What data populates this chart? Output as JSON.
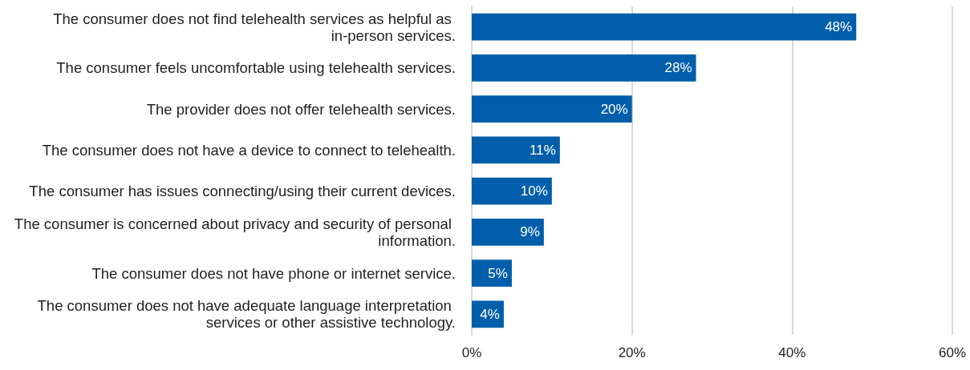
{
  "chart_data": {
    "type": "bar",
    "orientation": "horizontal",
    "categories": [
      "The consumer does not find telehealth services as helpful as in-person services.",
      "The consumer feels uncomfortable using telehealth services.",
      "The provider does not offer telehealth services.",
      "The consumer does not have a device to connect to telehealth.",
      "The consumer has issues connecting/using their current devices.",
      "The consumer is concerned about privacy and security of personal information.",
      "The consumer does not have phone or internet service.",
      "The consumer does not have adequate language interpretation services or other assistive technology."
    ],
    "values": [
      48,
      28,
      20,
      11,
      10,
      9,
      5,
      4
    ],
    "color": "#005eaa",
    "value_labels": [
      "48%",
      "28%",
      "20%",
      "11%",
      "10%",
      "9%",
      "5%",
      "4%"
    ],
    "xlim": [
      0,
      60
    ],
    "xticks": [
      {
        "value": 0,
        "label": "0%"
      },
      {
        "value": 20,
        "label": "20%"
      },
      {
        "value": 40,
        "label": "40%"
      },
      {
        "value": 60,
        "label": "60%"
      }
    ],
    "grid": "x"
  }
}
